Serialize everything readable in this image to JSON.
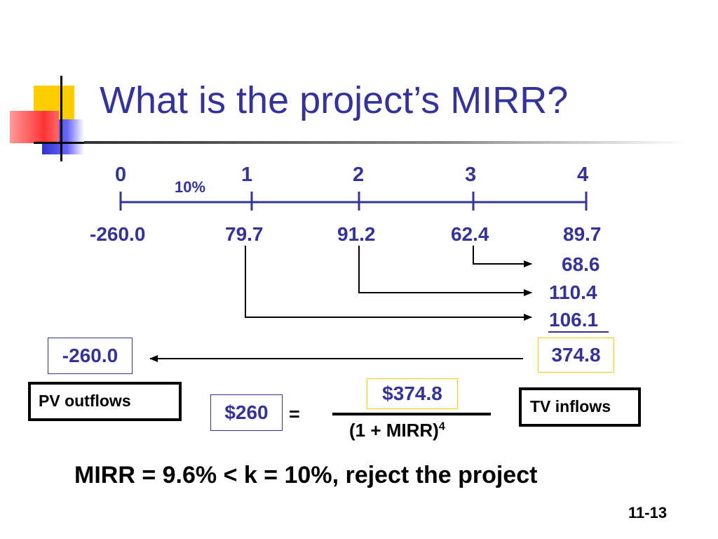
{
  "slide": {
    "title": "What is the project’s MIRR?",
    "page_number": "11-13"
  },
  "timeline": {
    "rate_label": "10%",
    "periods": [
      "0",
      "1",
      "2",
      "3",
      "4"
    ],
    "cash_flows": [
      "-260.0",
      "79.7",
      "91.2",
      "62.4",
      "89.7"
    ]
  },
  "compounded": {
    "values": [
      "68.6",
      "110.4",
      "106.1"
    ],
    "terminal_value": "374.8",
    "pv_outflows_value": "-260.0"
  },
  "labels": {
    "pv_outflows": "PV outflows",
    "tv_inflows": "TV inflows"
  },
  "equation": {
    "lhs": "$260",
    "equals": "=",
    "numerator": "$374.8",
    "denominator": "(1 + MIRR)",
    "exponent": "4"
  },
  "conclusion": "MIRR = 9.6% < k = 10%, reject the project",
  "colors": {
    "accent_blue": "#333399",
    "highlight_yellow": "#ffcc00",
    "deco_red": "#ff3333",
    "deco_yellow": "#ffcc00"
  }
}
